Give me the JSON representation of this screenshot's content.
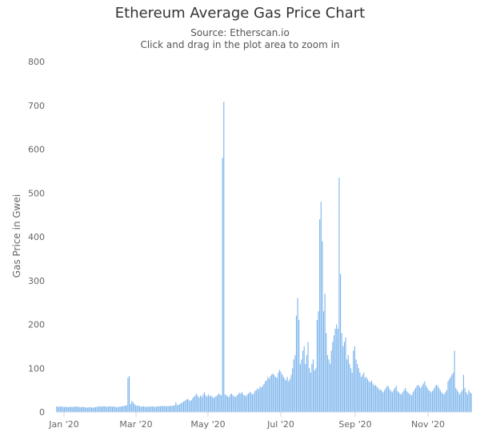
{
  "chart_data": {
    "type": "bar",
    "title": "Ethereum Average Gas Price Chart",
    "subtitle": "Source: Etherscan.io",
    "subtitle2": "Click and drag in the plot area to zoom in",
    "ylabel": "Gas Price in Gwei",
    "xlabel": "",
    "ylim": [
      0,
      800
    ],
    "yticks": [
      0,
      100,
      200,
      300,
      400,
      500,
      600,
      700,
      800
    ],
    "xticks": [
      "Jan '20",
      "Mar '20",
      "May '20",
      "Jul '20",
      "Sep '20",
      "Nov '20"
    ],
    "grid": false,
    "color": "#7cb5ec",
    "series": [
      {
        "values": [
          13,
          12,
          12,
          13,
          12,
          12,
          11,
          12,
          11,
          11,
          12,
          12,
          11,
          12,
          12,
          13,
          12,
          12,
          11,
          11,
          12,
          11,
          11,
          10,
          10,
          11,
          11,
          10,
          10,
          11,
          11,
          12,
          12,
          13,
          12,
          13,
          13,
          13,
          12,
          12,
          12,
          13,
          13,
          12,
          13,
          12,
          11,
          11,
          12,
          12,
          13,
          13,
          14,
          15,
          15,
          78,
          82,
          18,
          25,
          22,
          18,
          15,
          14,
          15,
          13,
          12,
          13,
          13,
          12,
          12,
          12,
          12,
          12,
          13,
          13,
          12,
          12,
          12,
          13,
          13,
          13,
          14,
          14,
          13,
          14,
          13,
          13,
          14,
          14,
          14,
          15,
          15,
          22,
          16,
          16,
          18,
          20,
          22,
          24,
          26,
          28,
          30,
          28,
          25,
          27,
          32,
          35,
          38,
          42,
          36,
          33,
          38,
          34,
          40,
          45,
          38,
          35,
          40,
          36,
          38,
          35,
          32,
          34,
          36,
          38,
          42,
          40,
          38,
          580,
          708,
          40,
          38,
          36,
          34,
          40,
          42,
          38,
          36,
          34,
          38,
          40,
          44,
          42,
          46,
          40,
          38,
          36,
          40,
          42,
          46,
          44,
          40,
          42,
          48,
          50,
          54,
          52,
          58,
          56,
          60,
          64,
          70,
          72,
          80,
          76,
          82,
          86,
          88,
          84,
          80,
          78,
          90,
          96,
          92,
          86,
          80,
          76,
          72,
          80,
          70,
          75,
          85,
          100,
          120,
          130,
          220,
          260,
          210,
          110,
          120,
          140,
          150,
          110,
          130,
          160,
          100,
          90,
          110,
          120,
          95,
          100,
          210,
          230,
          440,
          480,
          390,
          230,
          270,
          180,
          130,
          120,
          110,
          140,
          160,
          175,
          190,
          200,
          190,
          535,
          315,
          180,
          150,
          160,
          170,
          120,
          130,
          110,
          100,
          90,
          140,
          150,
          120,
          110,
          100,
          90,
          80,
          85,
          90,
          78,
          80,
          75,
          70,
          68,
          72,
          65,
          60,
          62,
          58,
          55,
          50,
          52,
          48,
          45,
          50,
          55,
          60,
          58,
          52,
          48,
          45,
          50,
          55,
          60,
          48,
          45,
          42,
          40,
          45,
          50,
          55,
          48,
          45,
          42,
          40,
          38,
          45,
          50,
          55,
          60,
          62,
          58,
          55,
          60,
          65,
          70,
          60,
          55,
          50,
          48,
          45,
          48,
          52,
          58,
          62,
          60,
          55,
          50,
          45,
          42,
          40,
          45,
          50,
          70,
          75,
          80,
          85,
          90,
          140,
          55,
          50,
          45,
          40,
          45,
          50,
          85,
          55,
          45,
          40,
          50,
          45,
          42
        ]
      }
    ]
  }
}
